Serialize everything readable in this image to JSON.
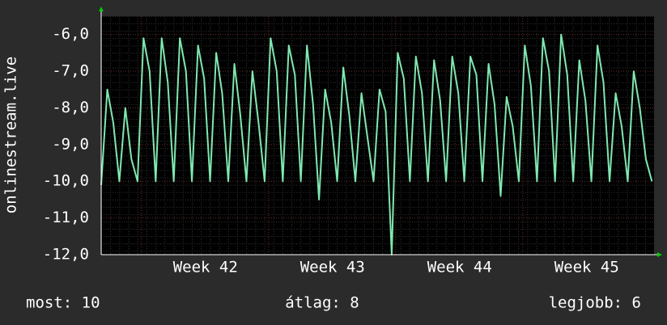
{
  "chart_data": {
    "type": "line",
    "y_label": "onlinestream.live",
    "x": [
      41.18,
      41.228,
      41.275,
      41.323,
      41.37,
      41.418,
      41.466,
      41.513,
      41.561,
      41.609,
      41.656,
      41.704,
      41.751,
      41.799,
      41.847,
      41.894,
      41.942,
      41.99,
      42.037,
      42.085,
      42.132,
      42.18,
      42.228,
      42.275,
      42.323,
      42.37,
      42.418,
      42.466,
      42.513,
      42.561,
      42.609,
      42.656,
      42.704,
      42.751,
      42.799,
      42.847,
      42.894,
      42.942,
      42.99,
      43.037,
      43.085,
      43.132,
      43.18,
      43.228,
      43.275,
      43.323,
      43.37,
      43.418,
      43.466,
      43.513,
      43.561,
      43.609,
      43.656,
      43.704,
      43.751,
      43.799,
      43.847,
      43.894,
      43.942,
      43.99,
      44.037,
      44.085,
      44.132,
      44.18,
      44.228,
      44.275,
      44.323,
      44.37,
      44.418,
      44.466,
      44.513,
      44.561,
      44.609,
      44.656,
      44.704,
      44.751,
      44.799,
      44.847,
      44.894,
      44.942,
      44.99,
      45.037,
      45.085,
      45.132,
      45.18,
      45.228,
      45.275,
      45.323,
      45.37,
      45.418,
      45.466,
      45.513
    ],
    "series": [
      {
        "name": "onlinestream.live",
        "color": "#7fe8b0",
        "values": [
          -10.1,
          -7.5,
          -8.4,
          -10,
          -8.0,
          -9.4,
          -10,
          -6.1,
          -7.0,
          -10,
          -6.1,
          -7.3,
          -10,
          -6.1,
          -7.0,
          -10,
          -6.3,
          -7.2,
          -10,
          -6.5,
          -7.6,
          -10,
          -6.8,
          -8.2,
          -10,
          -7.0,
          -8.4,
          -10,
          -6.1,
          -7.0,
          -10,
          -6.3,
          -7.1,
          -10,
          -6.3,
          -7.9,
          -10.5,
          -7.5,
          -8.4,
          -10,
          -6.9,
          -8.2,
          -10,
          -7.6,
          -8.8,
          -10,
          -7.5,
          -8.1,
          -12,
          -6.5,
          -7.2,
          -10,
          -6.6,
          -7.6,
          -10,
          -6.7,
          -7.8,
          -10,
          -6.6,
          -7.6,
          -10,
          -6.6,
          -7.1,
          -10,
          -6.8,
          -7.9,
          -10.4,
          -7.7,
          -8.5,
          -10,
          -6.3,
          -7.4,
          -10,
          -6.1,
          -7.0,
          -10,
          -6.0,
          -7.1,
          -10,
          -6.7,
          -7.8,
          -10,
          -6.3,
          -7.3,
          -10,
          -7.6,
          -8.5,
          -10,
          -7.0,
          -8.0,
          -9.4,
          -10
        ]
      }
    ],
    "xlim": [
      41.18,
      45.53
    ],
    "xticks": [
      {
        "value": 42,
        "label": "Week 42"
      },
      {
        "value": 43,
        "label": "Week 43"
      },
      {
        "value": 44,
        "label": "Week 44"
      },
      {
        "value": 45,
        "label": "Week 45"
      }
    ],
    "ylim": [
      -12,
      -5.5
    ],
    "yticks": [
      {
        "value": -12,
        "label": "-12,0"
      },
      {
        "value": -11,
        "label": "-11,0"
      },
      {
        "value": -10,
        "label": "-10,0"
      },
      {
        "value": -9,
        "label": "-9,0"
      },
      {
        "value": -8,
        "label": "-8,0"
      },
      {
        "value": -7,
        "label": "-7,0"
      },
      {
        "value": -6,
        "label": "-6,0"
      }
    ],
    "grid": true,
    "annotations": [
      "most: 10",
      "átlag: 8",
      "legjobb: 6"
    ]
  }
}
